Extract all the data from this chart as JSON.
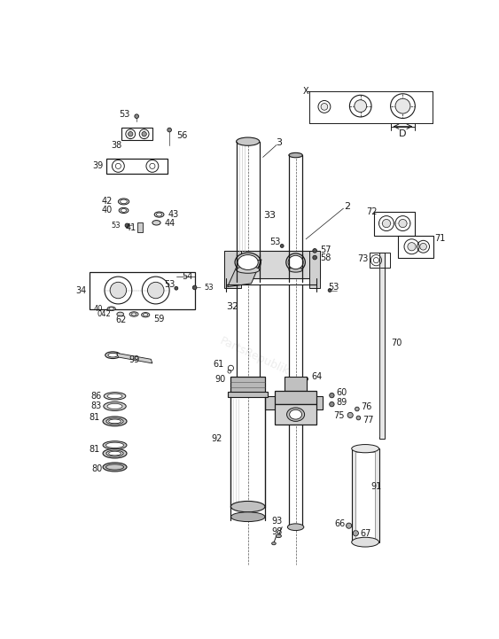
{
  "bg_color": "#ffffff",
  "line_color": "#1a1a1a",
  "watermark": "PartsRepublik",
  "figsize": [
    5.63,
    7.21
  ],
  "dpi": 100,
  "xlim": [
    0,
    563
  ],
  "ylim": [
    0,
    721
  ]
}
